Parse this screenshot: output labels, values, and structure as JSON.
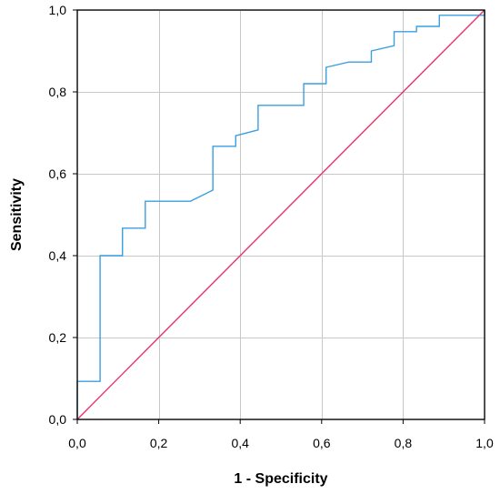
{
  "chart_data": {
    "type": "line",
    "title": "",
    "xlabel": "1 - Specificity",
    "ylabel": "Sensitivity",
    "xlim": [
      0,
      1
    ],
    "ylim": [
      0,
      1
    ],
    "x_ticks": [
      "0,0",
      "0,2",
      "0,4",
      "0,6",
      "0,8",
      "1,0"
    ],
    "y_ticks": [
      "0,0",
      "0,2",
      "0,4",
      "0,6",
      "0,8",
      "1,0"
    ],
    "grid": true,
    "series": [
      {
        "style": "step",
        "color": "#3a9fe0",
        "points": [
          [
            0.0,
            0.0
          ],
          [
            0.0,
            0.093
          ],
          [
            0.056,
            0.093
          ],
          [
            0.056,
            0.4
          ],
          [
            0.111,
            0.4
          ],
          [
            0.111,
            0.467
          ],
          [
            0.167,
            0.467
          ],
          [
            0.167,
            0.533
          ],
          [
            0.278,
            0.533
          ],
          [
            0.333,
            0.56
          ],
          [
            0.333,
            0.667
          ],
          [
            0.389,
            0.667
          ],
          [
            0.389,
            0.693
          ],
          [
            0.444,
            0.707
          ],
          [
            0.444,
            0.767
          ],
          [
            0.556,
            0.767
          ],
          [
            0.556,
            0.82
          ],
          [
            0.611,
            0.82
          ],
          [
            0.611,
            0.86
          ],
          [
            0.667,
            0.873
          ],
          [
            0.722,
            0.873
          ],
          [
            0.722,
            0.9
          ],
          [
            0.778,
            0.913
          ],
          [
            0.778,
            0.947
          ],
          [
            0.833,
            0.947
          ],
          [
            0.833,
            0.96
          ],
          [
            0.889,
            0.96
          ],
          [
            0.889,
            0.987
          ],
          [
            1.0,
            0.987
          ],
          [
            1.0,
            1.0
          ]
        ]
      },
      {
        "style": "reference",
        "color": "#e8336a",
        "points": [
          [
            0,
            0
          ],
          [
            1,
            1
          ]
        ]
      }
    ]
  }
}
